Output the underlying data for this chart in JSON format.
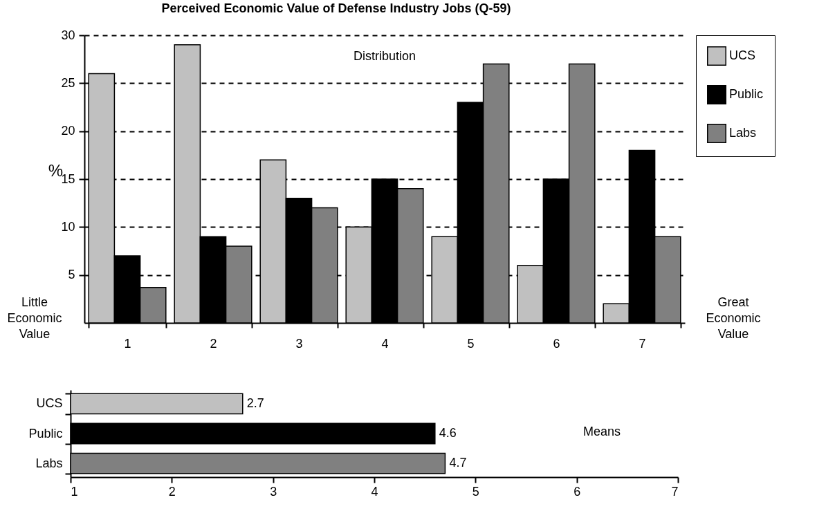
{
  "chart_data": [
    {
      "type": "bar",
      "title": "Perceived Economic Value of Defense Industry Jobs (Q-59)",
      "ylabel": "%",
      "categories": [
        "1",
        "2",
        "3",
        "4",
        "5",
        "6",
        "7"
      ],
      "series": [
        {
          "name": "UCS",
          "color": "#c0c0c0",
          "values": [
            26,
            29,
            17,
            10,
            9,
            6,
            2
          ]
        },
        {
          "name": "Public",
          "color": "#000000",
          "values": [
            7,
            9,
            13,
            15,
            23,
            15,
            18
          ]
        },
        {
          "name": "Labs",
          "color": "#808080",
          "values": [
            3.7,
            8,
            12,
            14,
            27,
            27,
            9
          ]
        }
      ],
      "ylim": [
        0,
        30
      ],
      "yticks": [
        5,
        10,
        15,
        20,
        25,
        30
      ],
      "grid": "y",
      "legend": "right",
      "annotations": [
        "Distribution",
        "Little Economic Value",
        "Great Economic Value"
      ]
    },
    {
      "type": "bar",
      "orientation": "horizontal",
      "categories": [
        "UCS",
        "Public",
        "Labs"
      ],
      "values": [
        2.7,
        4.6,
        4.7
      ],
      "colors": [
        "#c0c0c0",
        "#000000",
        "#808080"
      ],
      "xlim": [
        1,
        7
      ],
      "xticks": [
        1,
        2,
        3,
        4,
        5,
        6,
        7
      ],
      "data_labels": true,
      "annotations": [
        "Means"
      ]
    }
  ]
}
